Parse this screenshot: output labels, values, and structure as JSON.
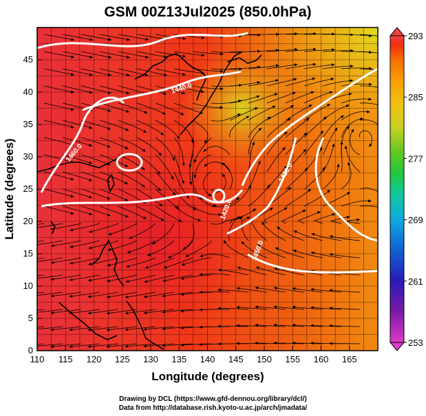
{
  "title": "GSM 00Z13Jul2025 (850.0hPa)",
  "x_axis": {
    "label": "Longitude (degrees)",
    "range": [
      110,
      170
    ],
    "ticks": [
      110,
      115,
      120,
      125,
      130,
      135,
      140,
      145,
      150,
      155,
      160,
      165
    ]
  },
  "y_axis": {
    "label": "Latitude  (degrees)",
    "range": [
      0,
      50
    ],
    "ticks": [
      0,
      5,
      10,
      15,
      20,
      25,
      30,
      35,
      40,
      45
    ]
  },
  "colorbar": {
    "range": [
      253,
      293
    ],
    "labels": [
      293,
      285,
      277,
      269,
      261,
      253
    ],
    "colors": [
      "#e03ac8",
      "#7a1aa8",
      "#2a1ab8",
      "#1060d0",
      "#10a8e0",
      "#10c8a0",
      "#20c840",
      "#60c820",
      "#c8d020",
      "#f0c010",
      "#f8a000",
      "#f87000",
      "#f03010",
      "#f04040"
    ]
  },
  "contours": [
    {
      "label": "1440.0"
    },
    {
      "label": "1460.0"
    },
    {
      "label": "1420.0"
    },
    {
      "label": "1430.0"
    },
    {
      "label": "1450.0"
    }
  ],
  "features": {
    "typhoon_center": {
      "lon": 141.5,
      "lat": 25.5
    },
    "anticyclone_center": {
      "lon": 167.5,
      "lat": 33.5
    },
    "background_colors": {
      "warm": "#f04010",
      "hot": "#e8202a",
      "mild": "#f08a10",
      "cool": "#d8e020"
    }
  },
  "credits": {
    "line1": "Drawing by DCL (https://www.gfd-dennou.org/library/dcl/)",
    "line2": "Data from http://database.rish.kyoto-u.ac.jp/arch/jmadata/"
  }
}
